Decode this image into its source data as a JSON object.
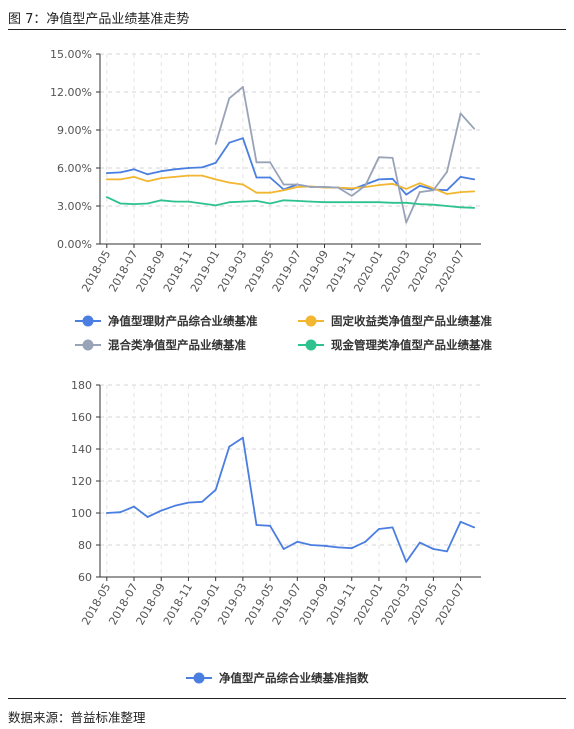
{
  "figure_title": "图 7：净值型产品业绩基准走势",
  "source": "数据来源：普益标准整理",
  "chart_data": [
    {
      "type": "line",
      "x": [
        "2018-05",
        "2018-06",
        "2018-07",
        "2018-08",
        "2018-09",
        "2018-10",
        "2018-11",
        "2018-12",
        "2019-01",
        "2019-02",
        "2019-03",
        "2019-04",
        "2019-05",
        "2019-06",
        "2019-07",
        "2019-08",
        "2019-09",
        "2019-10",
        "2019-11",
        "2019-12",
        "2020-01",
        "2020-02",
        "2020-03",
        "2020-04",
        "2020-05",
        "2020-06",
        "2020-07",
        "2020-08"
      ],
      "xticks": [
        "2018-05",
        "2018-07",
        "2018-09",
        "2018-11",
        "2019-01",
        "2019-03",
        "2019-05",
        "2019-07",
        "2019-09",
        "2019-11",
        "2020-01",
        "2020-03",
        "2020-05",
        "2020-07"
      ],
      "yticks": [
        "0.00%",
        "3.00%",
        "6.00%",
        "9.00%",
        "12.00%",
        "15.00%"
      ],
      "ylim": [
        0,
        15
      ],
      "y_unit": "%",
      "grid": true,
      "legend_position": "bottom",
      "series": [
        {
          "name": "净值型理财产品综合业绩基准",
          "color": "#4a7ee0",
          "values": [
            5.6,
            5.65,
            5.9,
            5.5,
            5.75,
            5.9,
            6.0,
            6.05,
            6.4,
            8.0,
            8.35,
            5.25,
            5.25,
            4.3,
            4.7,
            4.5,
            4.5,
            4.45,
            4.3,
            4.7,
            5.1,
            5.15,
            3.9,
            4.6,
            4.3,
            4.25,
            5.3,
            5.1
          ]
        },
        {
          "name": "固定收益类净值型产品业绩基准",
          "color": "#f2b630",
          "values": [
            5.1,
            5.1,
            5.3,
            4.95,
            5.2,
            5.3,
            5.4,
            5.4,
            5.1,
            4.85,
            4.7,
            4.05,
            4.05,
            4.25,
            4.5,
            4.55,
            4.45,
            4.45,
            4.4,
            4.5,
            4.65,
            4.75,
            4.35,
            4.8,
            4.4,
            3.95,
            4.1,
            4.15
          ]
        },
        {
          "name": "混合类净值型产品业绩基准",
          "color": "#99a3b8",
          "values": [
            null,
            null,
            null,
            null,
            null,
            null,
            null,
            null,
            7.9,
            11.5,
            12.4,
            6.45,
            6.45,
            4.7,
            4.7,
            4.5,
            4.5,
            4.45,
            3.8,
            4.6,
            6.85,
            6.8,
            1.7,
            4.1,
            4.25,
            5.7,
            10.3,
            9.1
          ]
        },
        {
          "name": "现金管理类净值型产品业绩基准",
          "color": "#2ec28e",
          "values": [
            3.7,
            3.2,
            3.15,
            3.2,
            3.45,
            3.35,
            3.35,
            3.2,
            3.05,
            3.3,
            3.35,
            3.4,
            3.2,
            3.45,
            3.4,
            3.35,
            3.3,
            3.3,
            3.3,
            3.3,
            3.3,
            3.25,
            3.25,
            3.15,
            3.1,
            3.0,
            2.9,
            2.85
          ]
        }
      ]
    },
    {
      "type": "line",
      "x": [
        "2018-05",
        "2018-06",
        "2018-07",
        "2018-08",
        "2018-09",
        "2018-10",
        "2018-11",
        "2018-12",
        "2019-01",
        "2019-02",
        "2019-03",
        "2019-04",
        "2019-05",
        "2019-06",
        "2019-07",
        "2019-08",
        "2019-09",
        "2019-10",
        "2019-11",
        "2019-12",
        "2020-01",
        "2020-02",
        "2020-03",
        "2020-04",
        "2020-05",
        "2020-06",
        "2020-07",
        "2020-08"
      ],
      "xticks": [
        "2018-05",
        "2018-07",
        "2018-09",
        "2018-11",
        "2019-01",
        "2019-03",
        "2019-05",
        "2019-07",
        "2019-09",
        "2019-11",
        "2020-01",
        "2020-03",
        "2020-05",
        "2020-07"
      ],
      "yticks": [
        "60",
        "80",
        "100",
        "120",
        "140",
        "160",
        "180"
      ],
      "ylim": [
        60,
        180
      ],
      "grid": true,
      "legend_position": "bottom",
      "series": [
        {
          "name": "净值型产品综合业绩基准指数",
          "color": "#4a7ee0",
          "values": [
            100,
            100.5,
            104,
            97.5,
            101.5,
            104.5,
            106.5,
            107,
            114.5,
            141.5,
            147,
            92.5,
            92,
            77.5,
            82,
            80,
            79.5,
            78.5,
            78,
            82,
            90,
            91,
            69.5,
            81.5,
            77.5,
            76,
            94.5,
            91
          ]
        }
      ]
    }
  ]
}
